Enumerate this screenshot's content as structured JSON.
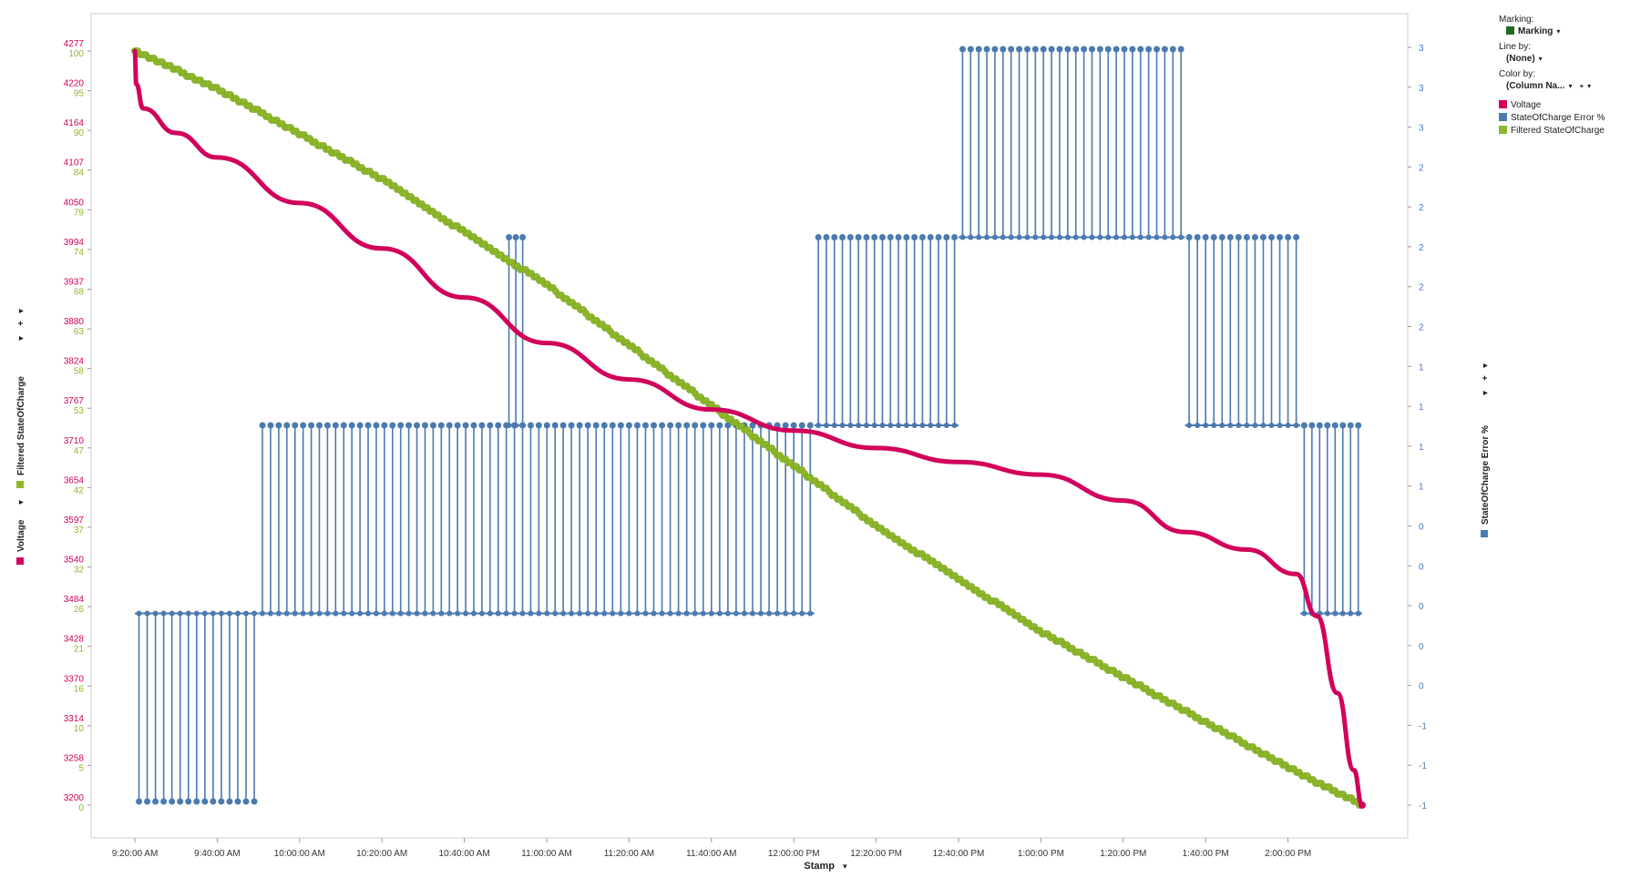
{
  "legend_panel": {
    "marking_label": "Marking:",
    "marking_value": "Marking",
    "line_by_label": "Line by:",
    "line_by_value": "(None)",
    "color_by_label": "Color by:",
    "color_by_value": "(Column Na...",
    "items": [
      {
        "label": "Voltage",
        "color": "#d1005b"
      },
      {
        "label": "StateOfCharge Error %",
        "color": "#4a7ab0"
      },
      {
        "label": "Filtered StateOfCharge",
        "color": "#8db82a"
      }
    ],
    "marking_color": "#1f6b1f"
  },
  "axes": {
    "x_title": "Stamp",
    "y_left_title_1": "Voltage",
    "y_left_title_2": "Filtered StateOfCharge",
    "y_right_title": "StateOfCharge Error %"
  },
  "chart_data": {
    "type": "line",
    "x_type": "time",
    "x_start_label": "9:20:00 AM",
    "x_end_label": "2:18:00 PM",
    "x_ticks": [
      "9:20:00 AM",
      "9:40:00 AM",
      "10:00:00 AM",
      "10:20:00 AM",
      "10:40:00 AM",
      "11:00:00 AM",
      "11:20:00 AM",
      "11:40:00 AM",
      "12:00:00 PM",
      "12:20:00 PM",
      "12:40:00 PM",
      "1:00:00 PM",
      "1:20:00 PM",
      "1:40:00 PM",
      "2:00:00 PM"
    ],
    "y_left_voltage_ticks": [
      4277,
      4220,
      4164,
      4107,
      4050,
      3994,
      3937,
      3880,
      3824,
      3767,
      3710,
      3654,
      3597,
      3540,
      3484,
      3428,
      3370,
      3314,
      3258,
      3200
    ],
    "y_left_soc_ticks": [
      100,
      95,
      90,
      84,
      79,
      74,
      68,
      63,
      58,
      53,
      47,
      42,
      37,
      32,
      26,
      21,
      16,
      10,
      5,
      0
    ],
    "y_right_ticks": [
      "3",
      "3",
      "3",
      "2",
      "2",
      "2",
      "2",
      "2",
      "1",
      "1",
      "1",
      "1",
      "0",
      "0",
      "0",
      "0",
      "0",
      "-1",
      "-1",
      "-1"
    ],
    "y_right_range": [
      -1,
      3
    ],
    "grid": false,
    "legend_position": "right",
    "series": [
      {
        "name": "Voltage",
        "color": "#d1005b",
        "points": [
          {
            "t": "9:20:00 AM",
            "v": 4277
          },
          {
            "t": "9:20:20 AM",
            "v": 4230
          },
          {
            "t": "9:22:00 AM",
            "v": 4195
          },
          {
            "t": "9:30:00 AM",
            "v": 4160
          },
          {
            "t": "9:40:00 AM",
            "v": 4125
          },
          {
            "t": "10:00:00 AM",
            "v": 4060
          },
          {
            "t": "10:20:00 AM",
            "v": 3995
          },
          {
            "t": "10:40:00 AM",
            "v": 3925
          },
          {
            "t": "11:00:00 AM",
            "v": 3860
          },
          {
            "t": "11:20:00 AM",
            "v": 3808
          },
          {
            "t": "11:40:00 AM",
            "v": 3765
          },
          {
            "t": "12:00:00 PM",
            "v": 3735
          },
          {
            "t": "12:20:00 PM",
            "v": 3710
          },
          {
            "t": "12:40:00 PM",
            "v": 3690
          },
          {
            "t": "1:00:00 PM",
            "v": 3672
          },
          {
            "t": "1:20:00 PM",
            "v": 3635
          },
          {
            "t": "1:35:00 PM",
            "v": 3590
          },
          {
            "t": "1:50:00 PM",
            "v": 3565
          },
          {
            "t": "2:02:00 PM",
            "v": 3530
          },
          {
            "t": "2:07:00 PM",
            "v": 3470
          },
          {
            "t": "2:12:00 PM",
            "v": 3360
          },
          {
            "t": "2:16:00 PM",
            "v": 3250
          },
          {
            "t": "2:18:00 PM",
            "v": 3200
          }
        ]
      },
      {
        "name": "StateOfCharge Error %",
        "color": "#4a7ab0",
        "steps": [
          {
            "from": "9:20:00 AM",
            "to": "9:50:00 AM",
            "base": 0,
            "spike": -1
          },
          {
            "from": "9:50:00 AM",
            "to": "11:05:00 AM",
            "base": 0,
            "spike": 1
          },
          {
            "from": "10:50:00 AM",
            "to": "10:55:00 AM",
            "base": 1,
            "spike": 2
          },
          {
            "from": "11:05:00 AM",
            "to": "12:05:00 PM",
            "base": 0,
            "spike": 1
          },
          {
            "from": "12:05:00 PM",
            "to": "12:40:00 PM",
            "base": 1,
            "spike": 2
          },
          {
            "from": "12:40:00 PM",
            "to": "1:35:00 PM",
            "base": 2,
            "spike": 3
          },
          {
            "from": "1:35:00 PM",
            "to": "2:03:00 PM",
            "base": 1,
            "spike": 2
          },
          {
            "from": "2:03:00 PM",
            "to": "2:18:00 PM",
            "base": 0,
            "spike": 1
          }
        ]
      },
      {
        "name": "Filtered StateOfCharge",
        "color": "#8db82a",
        "points": [
          {
            "t": "9:20:00 AM",
            "v": 100
          },
          {
            "t": "9:40:00 AM",
            "v": 95
          },
          {
            "t": "10:00:00 AM",
            "v": 89
          },
          {
            "t": "10:20:00 AM",
            "v": 83
          },
          {
            "t": "10:40:00 AM",
            "v": 76
          },
          {
            "t": "11:00:00 AM",
            "v": 69
          },
          {
            "t": "11:20:00 AM",
            "v": 61
          },
          {
            "t": "11:40:00 AM",
            "v": 53
          },
          {
            "t": "12:00:00 PM",
            "v": 45
          },
          {
            "t": "12:20:00 PM",
            "v": 37
          },
          {
            "t": "12:40:00 PM",
            "v": 30
          },
          {
            "t": "1:00:00 PM",
            "v": 23
          },
          {
            "t": "1:20:00 PM",
            "v": 17
          },
          {
            "t": "1:40:00 PM",
            "v": 11
          },
          {
            "t": "2:00:00 PM",
            "v": 5
          },
          {
            "t": "2:18:00 PM",
            "v": 0
          }
        ]
      }
    ]
  }
}
